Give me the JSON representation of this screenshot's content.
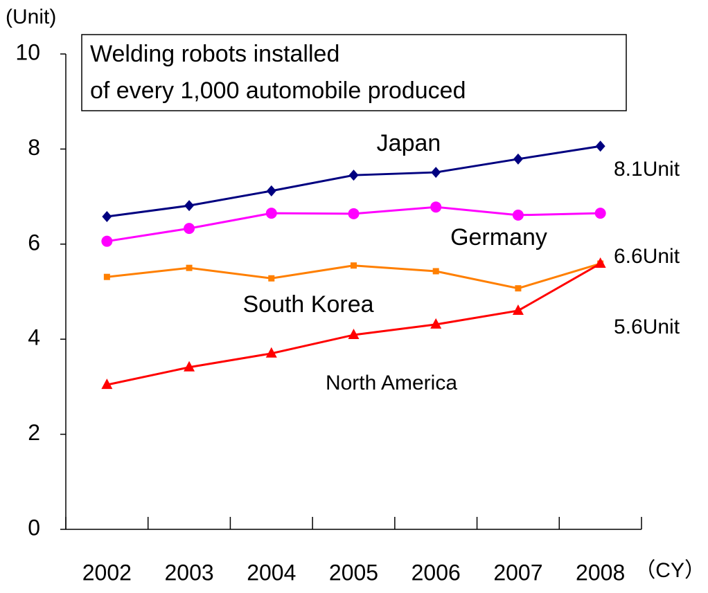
{
  "chart_data": {
    "type": "line",
    "title": [
      "Welding robots installed",
      "of every 1,000 automobile produced"
    ],
    "y_label": "(Unit)",
    "x_label": "（CY）",
    "categories": [
      "2002",
      "2003",
      "2004",
      "2005",
      "2006",
      "2007",
      "2008"
    ],
    "series": [
      {
        "name": "Japan",
        "color": "#000080",
        "marker": "diamond",
        "values": [
          6.58,
          6.81,
          7.12,
          7.45,
          7.51,
          7.79,
          8.06
        ]
      },
      {
        "name": "Germany",
        "color": "#ff00ff",
        "marker": "circle",
        "values": [
          6.06,
          6.33,
          6.65,
          6.64,
          6.78,
          6.61,
          6.65
        ]
      },
      {
        "name": "South Korea",
        "color": "#ff7f00",
        "marker": "square",
        "values": [
          5.31,
          5.5,
          5.28,
          5.55,
          5.43,
          5.07,
          5.59
        ]
      },
      {
        "name": "North America",
        "color": "#ff0000",
        "marker": "triangle",
        "values": [
          3.04,
          3.41,
          3.7,
          4.09,
          4.31,
          4.6,
          5.59
        ]
      }
    ],
    "annotations": [
      "8.1Unit",
      "6.6Unit",
      "5.6Unit"
    ],
    "ylim": [
      0,
      10
    ],
    "yticks": [
      0,
      2,
      4,
      6,
      8,
      10
    ],
    "grid": false
  }
}
